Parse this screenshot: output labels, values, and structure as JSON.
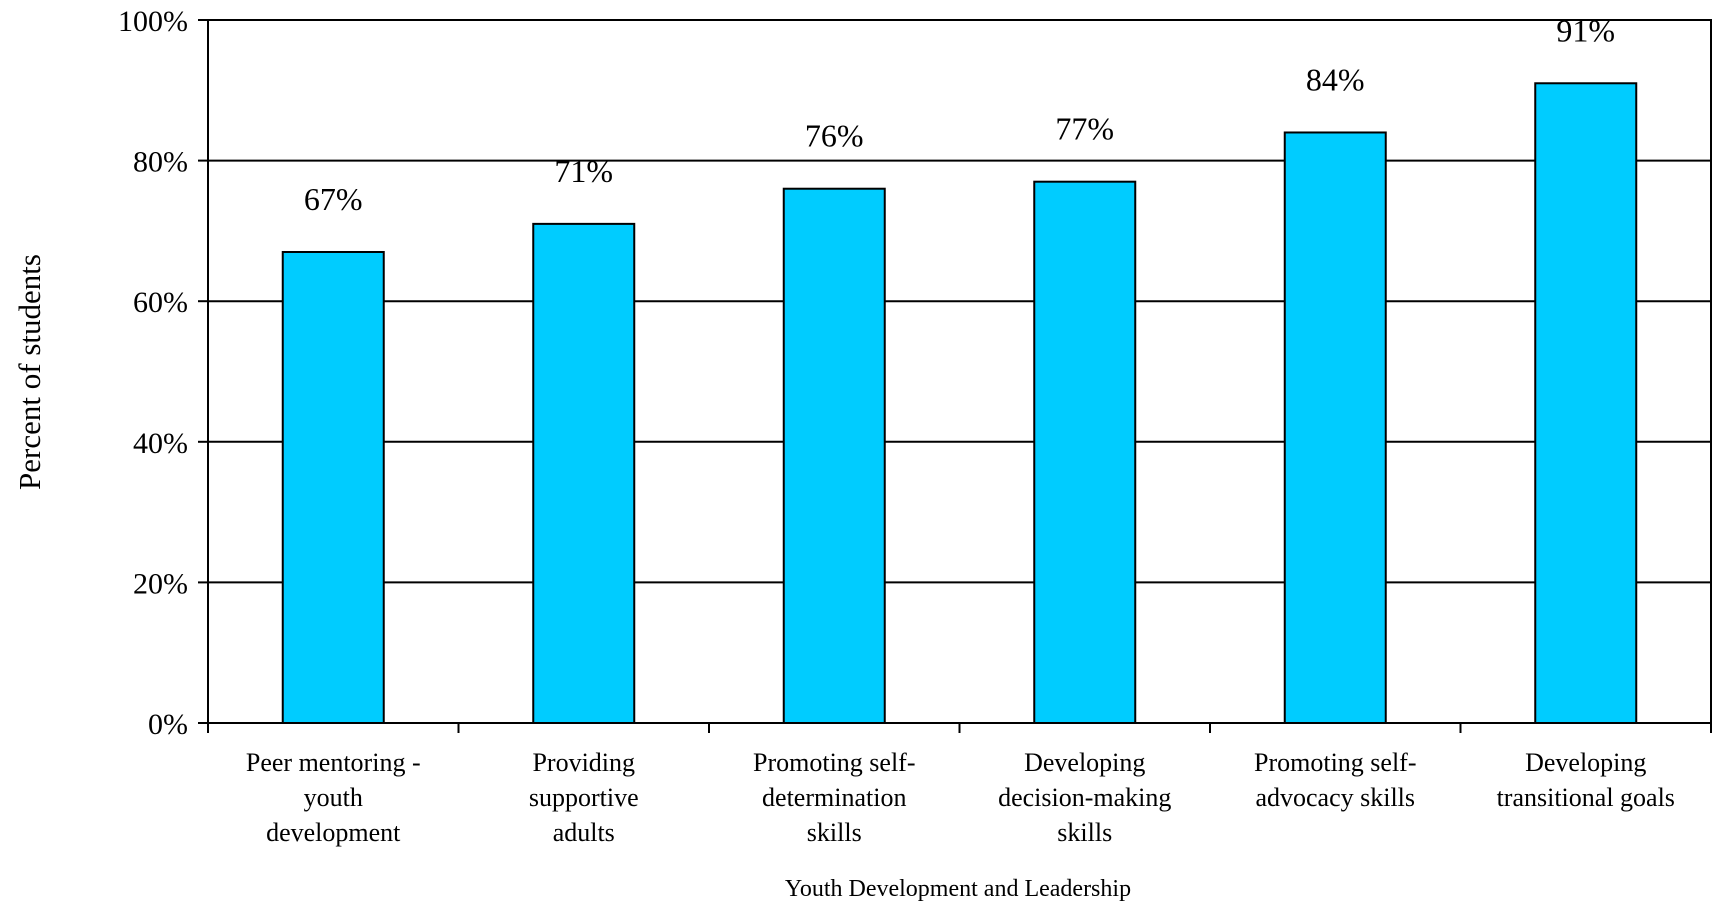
{
  "chart_data": {
    "type": "bar",
    "categories": [
      [
        "Peer mentoring -",
        "youth",
        "development"
      ],
      [
        "Providing",
        "supportive",
        "adults"
      ],
      [
        "Promoting self-",
        "determination",
        "skills"
      ],
      [
        "Developing",
        "decision-making",
        "skills"
      ],
      [
        "Promoting self-",
        "advocacy skills"
      ],
      [
        "Developing",
        "transitional goals"
      ]
    ],
    "values": [
      67,
      71,
      76,
      77,
      84,
      91
    ],
    "data_labels": [
      "67%",
      "71%",
      "76%",
      "77%",
      "84%",
      "91%"
    ],
    "ylim": [
      0,
      100
    ],
    "yticks": [
      0,
      20,
      40,
      60,
      80,
      100
    ],
    "ytick_labels": [
      "0%",
      "20%",
      "40%",
      "60%",
      "80%",
      "100%"
    ],
    "xlabel": "Youth Development and Leadership",
    "ylabel": "Percent of students",
    "grid": true,
    "bar_color": "#00CCFF"
  }
}
